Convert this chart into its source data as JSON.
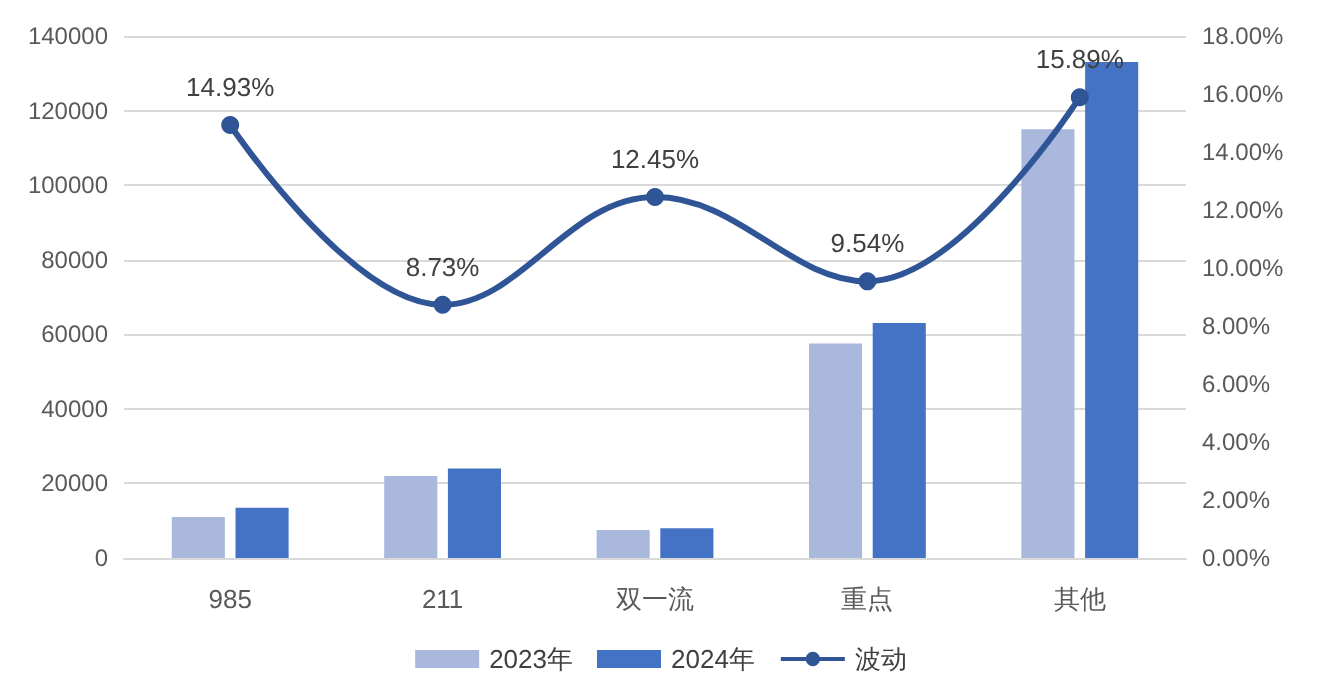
{
  "chart_data": {
    "type": "bar",
    "categories": [
      "985",
      "211",
      "双一流",
      "重点",
      "其他"
    ],
    "series": [
      {
        "name": "2023年",
        "color": "#a9b8dc",
        "values": [
          11000,
          22000,
          7500,
          57500,
          115000
        ]
      },
      {
        "name": "2024年",
        "color": "#4472c4",
        "values": [
          13500,
          24000,
          8000,
          63000,
          133000
        ]
      },
      {
        "name": "波动",
        "type": "line",
        "axis": "y2",
        "color": "#2f5597",
        "marker": "circle",
        "values": [
          14.93,
          8.73,
          12.45,
          9.54,
          15.89
        ],
        "value_labels": [
          "14.93%",
          "8.73%",
          "12.45%",
          "9.54%",
          "15.89%"
        ]
      }
    ],
    "ylim": [
      0,
      140000
    ],
    "yticks": [
      0,
      20000,
      40000,
      60000,
      80000,
      100000,
      120000,
      140000
    ],
    "y2lim": [
      0,
      18
    ],
    "y2ticks": [
      {
        "value": 0,
        "label": "0.00%"
      },
      {
        "value": 2,
        "label": "2.00%"
      },
      {
        "value": 4,
        "label": "4.00%"
      },
      {
        "value": 6,
        "label": "6.00%"
      },
      {
        "value": 8,
        "label": "8.00%"
      },
      {
        "value": 10,
        "label": "10.00%"
      },
      {
        "value": 12,
        "label": "12.00%"
      },
      {
        "value": 14,
        "label": "14.00%"
      },
      {
        "value": 16,
        "label": "16.00%"
      },
      {
        "value": 18,
        "label": "18.00%"
      }
    ],
    "grid": "y",
    "legend": "bottom"
  }
}
